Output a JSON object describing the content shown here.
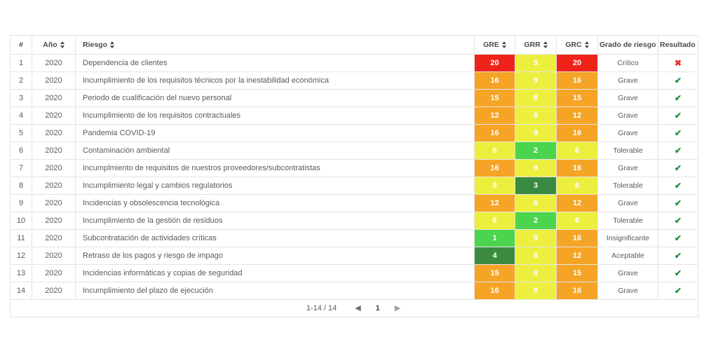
{
  "table": {
    "columns": [
      {
        "key": "num",
        "label": "#",
        "sortable": false
      },
      {
        "key": "year",
        "label": "Año",
        "sortable": true
      },
      {
        "key": "risk",
        "label": "Riesgo",
        "sortable": true
      },
      {
        "key": "gre",
        "label": "GRE",
        "sortable": true
      },
      {
        "key": "grr",
        "label": "GRR",
        "sortable": true
      },
      {
        "key": "grc",
        "label": "GRC",
        "sortable": true
      },
      {
        "key": "grade",
        "label": "Grado de riesgo",
        "sortable": true
      },
      {
        "key": "result",
        "label": "Resultado",
        "sortable": true
      }
    ],
    "rows": [
      {
        "num": "1",
        "year": "2020",
        "risk": "Dependencia de clientes",
        "gre": {
          "value": "20",
          "level": "red"
        },
        "grr": {
          "value": "9",
          "level": "yellow"
        },
        "grc": {
          "value": "20",
          "level": "red"
        },
        "grade": "Crítico",
        "result": "fail"
      },
      {
        "num": "2",
        "year": "2020",
        "risk": "Incumplimiento de los requisitos técnicos por la inestabilidad económica",
        "gre": {
          "value": "16",
          "level": "orange"
        },
        "grr": {
          "value": "9",
          "level": "yellow"
        },
        "grc": {
          "value": "16",
          "level": "orange"
        },
        "grade": "Grave",
        "result": "pass"
      },
      {
        "num": "3",
        "year": "2020",
        "risk": "Periodo de cualificación del nuevo personal",
        "gre": {
          "value": "15",
          "level": "orange"
        },
        "grr": {
          "value": "8",
          "level": "yellow"
        },
        "grc": {
          "value": "15",
          "level": "orange"
        },
        "grade": "Grave",
        "result": "pass"
      },
      {
        "num": "4",
        "year": "2020",
        "risk": "Incumplimiento de los requisitos contractuales",
        "gre": {
          "value": "12",
          "level": "orange"
        },
        "grr": {
          "value": "6",
          "level": "yellow"
        },
        "grc": {
          "value": "12",
          "level": "orange"
        },
        "grade": "Grave",
        "result": "pass"
      },
      {
        "num": "5",
        "year": "2020",
        "risk": "Pandemia COVID-19",
        "gre": {
          "value": "16",
          "level": "orange"
        },
        "grr": {
          "value": "9",
          "level": "yellow"
        },
        "grc": {
          "value": "16",
          "level": "orange"
        },
        "grade": "Grave",
        "result": "pass"
      },
      {
        "num": "6",
        "year": "2020",
        "risk": "Contaminación ambiental",
        "gre": {
          "value": "6",
          "level": "yellow"
        },
        "grr": {
          "value": "2",
          "level": "green"
        },
        "grc": {
          "value": "6",
          "level": "yellow"
        },
        "grade": "Tolerable",
        "result": "pass"
      },
      {
        "num": "7",
        "year": "2020",
        "risk": "Incumplmiento de requisitos de nuestros proveedores/subcontratistas",
        "gre": {
          "value": "16",
          "level": "orange"
        },
        "grr": {
          "value": "9",
          "level": "yellow"
        },
        "grc": {
          "value": "16",
          "level": "orange"
        },
        "grade": "Grave",
        "result": "pass"
      },
      {
        "num": "8",
        "year": "2020",
        "risk": "Incumplimiento legal y cambios regulatorios",
        "gre": {
          "value": "8",
          "level": "yellow"
        },
        "grr": {
          "value": "3",
          "level": "dark_green"
        },
        "grc": {
          "value": "8",
          "level": "yellow"
        },
        "grade": "Tolerable",
        "result": "pass"
      },
      {
        "num": "9",
        "year": "2020",
        "risk": "Incidencias y obsolescencia tecnológica",
        "gre": {
          "value": "12",
          "level": "orange"
        },
        "grr": {
          "value": "6",
          "level": "yellow"
        },
        "grc": {
          "value": "12",
          "level": "orange"
        },
        "grade": "Grave",
        "result": "pass"
      },
      {
        "num": "10",
        "year": "2020",
        "risk": "Incumplimiento de la gestión de residuos",
        "gre": {
          "value": "6",
          "level": "yellow"
        },
        "grr": {
          "value": "2",
          "level": "green"
        },
        "grc": {
          "value": "6",
          "level": "yellow"
        },
        "grade": "Tolerable",
        "result": "pass"
      },
      {
        "num": "11",
        "year": "2020",
        "risk": "Subcontratación de actividades críticas",
        "gre": {
          "value": "1",
          "level": "green"
        },
        "grr": {
          "value": "9",
          "level": "yellow"
        },
        "grc": {
          "value": "16",
          "level": "orange"
        },
        "grade": "Insignificante",
        "result": "pass"
      },
      {
        "num": "12",
        "year": "2020",
        "risk": "Retraso de los pagos y riesgo de impago",
        "gre": {
          "value": "4",
          "level": "dark_green"
        },
        "grr": {
          "value": "6",
          "level": "yellow"
        },
        "grc": {
          "value": "12",
          "level": "orange"
        },
        "grade": "Aceptable",
        "result": "pass"
      },
      {
        "num": "13",
        "year": "2020",
        "risk": "Incidencias informáticas y copias de seguridad",
        "gre": {
          "value": "15",
          "level": "orange"
        },
        "grr": {
          "value": "8",
          "level": "yellow"
        },
        "grc": {
          "value": "15",
          "level": "orange"
        },
        "grade": "Grave",
        "result": "pass"
      },
      {
        "num": "14",
        "year": "2020",
        "risk": "Incumplimiento del plazo de ejecución",
        "gre": {
          "value": "16",
          "level": "orange"
        },
        "grr": {
          "value": "9",
          "level": "yellow"
        },
        "grc": {
          "value": "16",
          "level": "orange"
        },
        "grade": "Grave",
        "result": "pass"
      }
    ]
  },
  "severity_colors": {
    "red": "#ee241b",
    "orange": "#f5a426",
    "yellow": "#edef3f",
    "green": "#4bd54e",
    "dark_green": "#3a8b41"
  },
  "icons": {
    "pass": "✔",
    "fail": "✖",
    "prev": "◀",
    "next": "▶"
  },
  "result_colors": {
    "pass": "#1f8b3b",
    "fail": "#e52f2a"
  },
  "pagination": {
    "range_label": "1-14 / 14",
    "current_page": "1",
    "active_page_color": "#8bbce8"
  }
}
